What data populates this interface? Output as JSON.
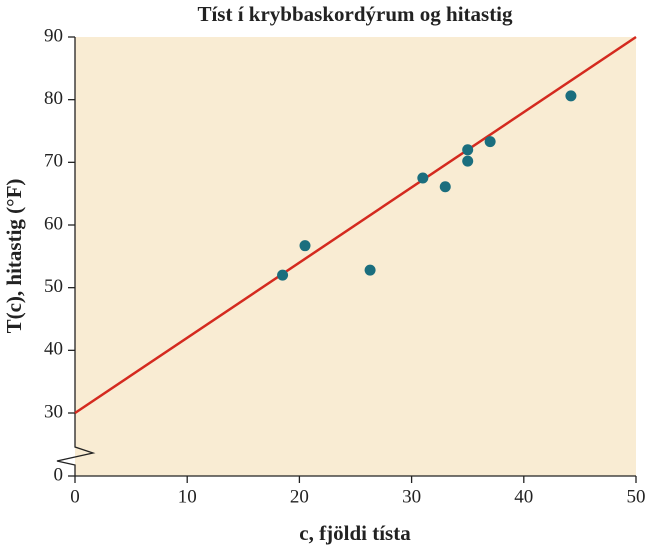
{
  "chart_data": {
    "type": "scatter",
    "title": "Tíst í krybbaskordýrum og hitastig",
    "x_label": "c, fjöldi tísta",
    "y_label": "T(c), hitastig (°F)",
    "series": [
      {
        "type": "scatter",
        "color": "#1b6e7e",
        "x": [
          18.5,
          20.5,
          26.3,
          31,
          33,
          35,
          35,
          37,
          44.2
        ],
        "values": [
          52,
          56.7,
          52.8,
          67.5,
          66.1,
          72,
          70.2,
          73.3,
          80.6
        ]
      },
      {
        "type": "line",
        "color": "#d42a1f",
        "x": [
          0,
          50
        ],
        "values": [
          30,
          90
        ]
      }
    ],
    "xlim": [
      0,
      50
    ],
    "xticks": [
      0,
      10,
      20,
      30,
      40,
      50
    ],
    "ylim": [
      0,
      90
    ],
    "yticks": [
      0,
      30,
      40,
      50,
      60,
      70,
      80,
      90
    ],
    "y_break": [
      0,
      30
    ],
    "background": "#f9ecd3"
  }
}
